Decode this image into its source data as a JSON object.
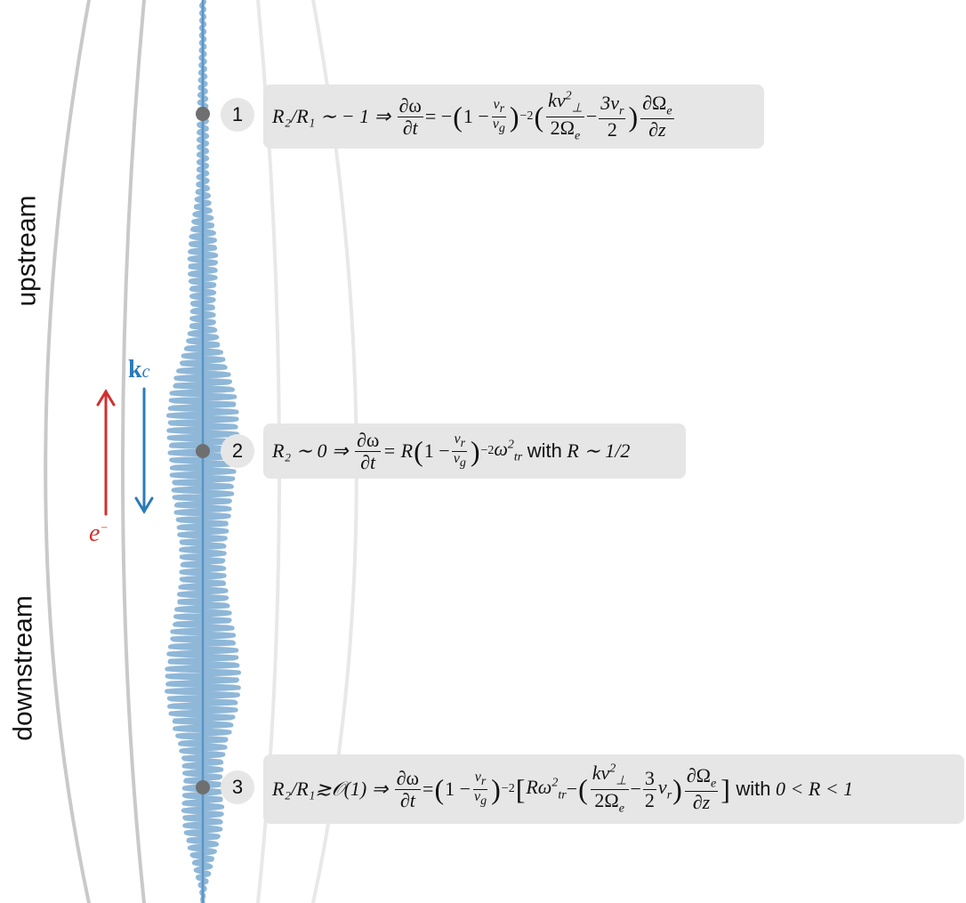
{
  "labels": {
    "upstream": "upstream",
    "downstream": "downstream",
    "kc": "k",
    "kc_sub": "c",
    "electron": "e",
    "electron_sup": "−"
  },
  "points": [
    {
      "number": "1"
    },
    {
      "number": "2"
    },
    {
      "number": "3"
    }
  ],
  "equations": {
    "eq1": {
      "lhs": "R₂/R₁ ∼ − 1 ⇒",
      "dw": "∂ω",
      "dt": "∂t",
      "eq": "= −",
      "vr": "v",
      "vr_sub": "r",
      "vg": "v",
      "vg_sub": "g",
      "minus2": "−2",
      "kv": "kv",
      "perp": "⊥",
      "two_omega": "2Ω",
      "omega_sub": "e",
      "three_vr": "3v",
      "two": "2",
      "dOmega": "∂Ω",
      "dz": "∂z"
    },
    "eq2": {
      "lhs": "R₂ ∼ 0 ⇒",
      "dw": "∂ω",
      "dt": "∂t",
      "eq": "= R",
      "tail_omega": "ω",
      "tail_sub": "tr",
      "with": "with",
      "cond": "R ∼ 1/2"
    },
    "eq3": {
      "lhs": "R₂/R₁≳𝒪(1) ⇒",
      "dw": "∂ω",
      "dt": "∂t",
      "eq": "=",
      "r_omega": "Rω",
      "tr": "tr",
      "with": "with",
      "cond": "0 < R < 1"
    }
  },
  "colors": {
    "wave": "#8fb7d8",
    "wave_core": "#5a95c5",
    "field_lines": "#cfcfcf",
    "box": "#e6e6e6",
    "kc_arrow": "#2b7bb9",
    "electron_arrow": "#d03030",
    "marker": "#6f6f6f"
  }
}
